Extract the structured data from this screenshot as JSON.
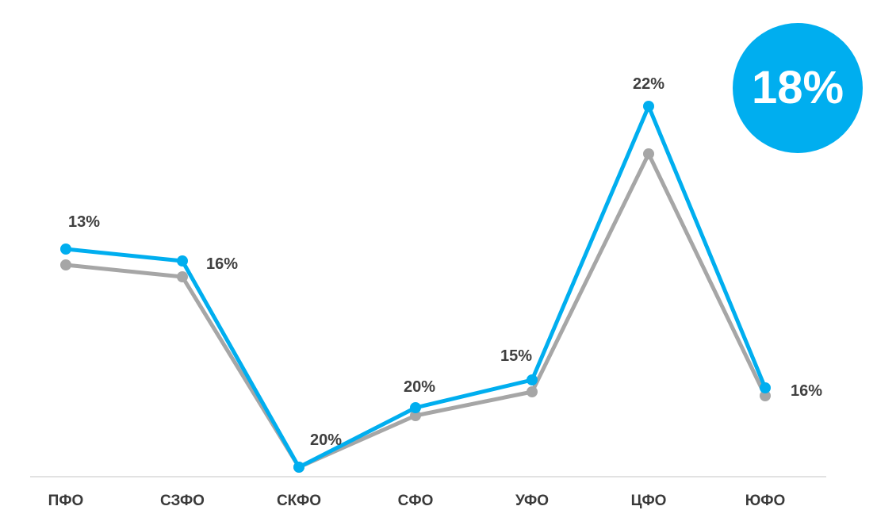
{
  "badge": {
    "value": "18%",
    "color": "#00aeef"
  },
  "chart_data": {
    "type": "line",
    "title": "",
    "xlabel": "",
    "ylabel": "",
    "grid": false,
    "categories": [
      "ПФО",
      "СЗФО",
      "СКФО",
      "СФО",
      "УФО",
      "ЦФО",
      "ЮФО"
    ],
    "data_labels": [
      "13%",
      "16%",
      "20%",
      "20%",
      "15%",
      "22%",
      "16%"
    ],
    "ylim": [
      0,
      100
    ],
    "series": [
      {
        "color": "#00aeef",
        "values": [
          55,
          52,
          0,
          15,
          22,
          91,
          20
        ]
      },
      {
        "color": "#a6a6a6",
        "values": [
          51,
          48,
          0,
          13,
          19,
          79,
          18
        ]
      }
    ]
  }
}
